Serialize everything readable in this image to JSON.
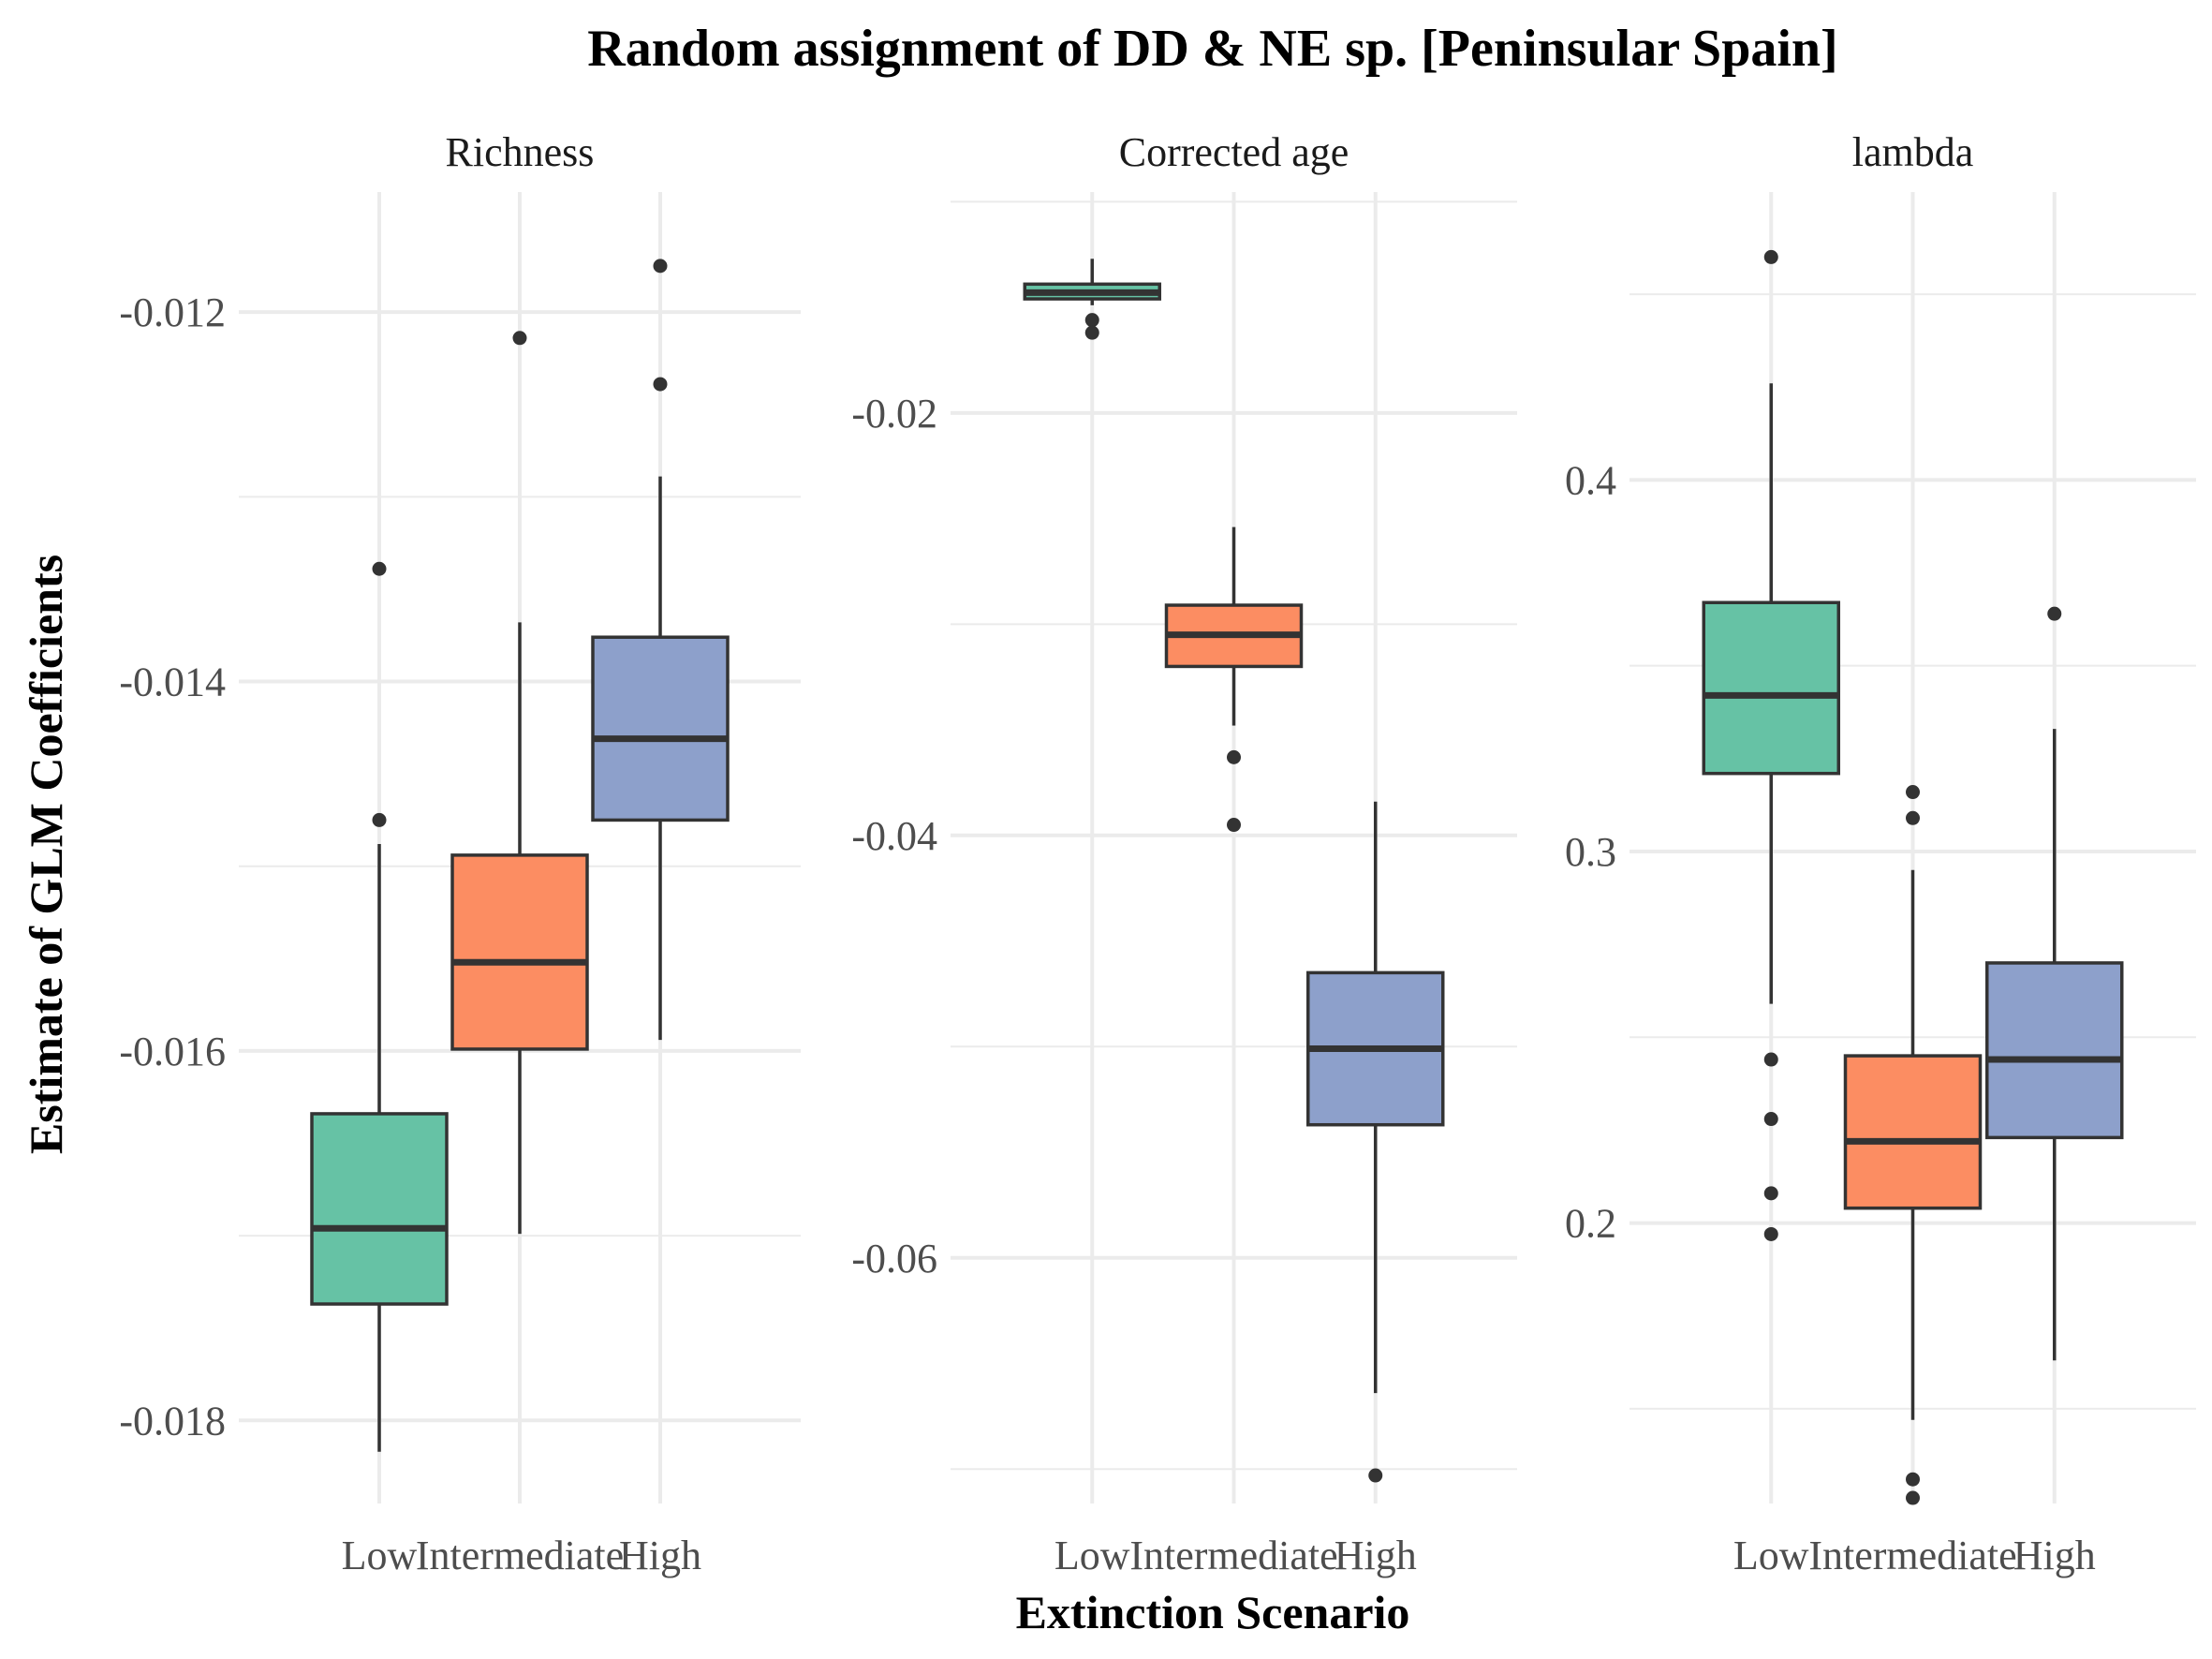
{
  "chart_data": {
    "type": "boxplot",
    "title": "Random assignment of DD & NE sp. [Peninsular Spain]",
    "xlabel": "Extinction Scenario",
    "ylabel": "Estimate of GLM Coefficients",
    "categories": [
      "Low",
      "Intermediate",
      "High"
    ],
    "colors": {
      "Low": "#66c2a5",
      "Intermediate": "#fc8d62",
      "High": "#8da0cb"
    },
    "grid": true,
    "legend": "none",
    "panels": [
      {
        "name": "Richness",
        "ylim": [
          -0.01845,
          -0.01135
        ],
        "yticks": [
          -0.012,
          -0.014,
          -0.016,
          -0.018
        ],
        "ytick_labels": [
          "-0.012",
          "-0.014",
          "-0.016",
          "-0.018"
        ],
        "boxes": [
          {
            "category": "Low",
            "whisker_low": -0.01817,
            "q1": -0.01737,
            "median": -0.01696,
            "q3": -0.01634,
            "whisker_high": -0.01488,
            "outliers": [
              -0.01475,
              -0.01339
            ]
          },
          {
            "category": "Intermediate",
            "whisker_low": -0.01699,
            "q1": -0.01599,
            "median": -0.01552,
            "q3": -0.01494,
            "whisker_high": -0.01368,
            "outliers": [
              -0.01214
            ]
          },
          {
            "category": "High",
            "whisker_low": -0.01594,
            "q1": -0.01475,
            "median": -0.01431,
            "q3": -0.01376,
            "whisker_high": -0.01289,
            "outliers": [
              -0.01239,
              -0.01175
            ]
          }
        ]
      },
      {
        "name": "Corrected age",
        "ylim": [
          -0.07163,
          -0.00954
        ],
        "yticks": [
          -0.02,
          -0.04,
          -0.06
        ],
        "ytick_labels": [
          "-0.02",
          "-0.04",
          "-0.06"
        ],
        "boxes": [
          {
            "category": "Low",
            "whisker_low": -0.0149,
            "q1": -0.0146,
            "median": -0.0143,
            "q3": -0.0139,
            "whisker_high": -0.0127,
            "outliers": [
              -0.0156,
              -0.0162
            ]
          },
          {
            "category": "Intermediate",
            "whisker_low": -0.0348,
            "q1": -0.032,
            "median": -0.0305,
            "q3": -0.0291,
            "whisker_high": -0.0254,
            "outliers": [
              -0.0363,
              -0.0395
            ]
          },
          {
            "category": "High",
            "whisker_low": -0.0664,
            "q1": -0.0537,
            "median": -0.0501,
            "q3": -0.0465,
            "whisker_high": -0.0384,
            "outliers": [
              -0.0703
            ]
          }
        ]
      },
      {
        "name": "lambda",
        "ylim": [
          0.1245,
          0.4775
        ],
        "yticks": [
          0.4,
          0.3,
          0.2
        ],
        "ytick_labels": [
          "0.4",
          "0.3",
          "0.2"
        ],
        "boxes": [
          {
            "category": "Low",
            "whisker_low": 0.259,
            "q1": 0.321,
            "median": 0.342,
            "q3": 0.367,
            "whisker_high": 0.426,
            "outliers": [
              0.46,
              0.244,
              0.228,
              0.208,
              0.197
            ]
          },
          {
            "category": "Intermediate",
            "whisker_low": 0.147,
            "q1": 0.204,
            "median": 0.222,
            "q3": 0.245,
            "whisker_high": 0.295,
            "outliers": [
              0.316,
              0.309,
              0.131,
              0.126
            ]
          },
          {
            "category": "High",
            "whisker_low": 0.163,
            "q1": 0.223,
            "median": 0.244,
            "q3": 0.27,
            "whisker_high": 0.333,
            "outliers": [
              0.364
            ]
          }
        ]
      }
    ]
  }
}
